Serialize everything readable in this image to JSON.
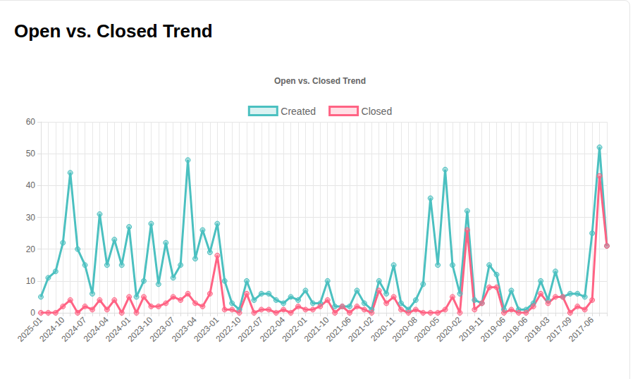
{
  "heading": "Open vs. Closed Trend",
  "chart_data": {
    "type": "line",
    "title": "Open vs. Closed Trend",
    "categories": [
      "2025-01",
      null,
      null,
      "2024-10",
      null,
      null,
      "2024-07",
      null,
      null,
      "2024-04",
      null,
      null,
      "2024-01",
      null,
      null,
      "2023-10",
      null,
      null,
      "2023-07",
      null,
      null,
      "2023-04",
      null,
      null,
      "2023-01",
      null,
      null,
      "2022-10",
      null,
      null,
      "2022-07",
      null,
      null,
      "2022-04",
      null,
      null,
      "2022-01",
      null,
      null,
      "2021-10",
      null,
      null,
      "2021-06",
      null,
      null,
      "2021-02",
      null,
      null,
      "2020-11",
      null,
      null,
      "2020-08",
      null,
      null,
      "2020-05",
      null,
      null,
      "2020-02",
      null,
      null,
      "2019-11",
      null,
      null,
      "2019-06",
      null,
      null,
      "2018-06",
      null,
      null,
      "2018-03",
      null,
      null,
      "2017-09",
      null,
      null,
      "2017-06",
      null,
      null
    ],
    "series": [
      {
        "name": "Created",
        "color": "#4bc0c0",
        "values": [
          5,
          11,
          13,
          22,
          44,
          20,
          15,
          6,
          31,
          15,
          23,
          15,
          27,
          5,
          10,
          28,
          9,
          22,
          11,
          15,
          48,
          17,
          26,
          19,
          28,
          10,
          3,
          1,
          10,
          4,
          6,
          6,
          4,
          3,
          5,
          4,
          7,
          3,
          3,
          10,
          2,
          2,
          2,
          7,
          3,
          1,
          10,
          6,
          15,
          3,
          1,
          4,
          9,
          36,
          15,
          45,
          15,
          6,
          32,
          4,
          3,
          15,
          12,
          1,
          7,
          1,
          1,
          3,
          10,
          4,
          13,
          5,
          6,
          6,
          5,
          25,
          52,
          21
        ]
      },
      {
        "name": "Closed",
        "color": "#ff6384",
        "values": [
          0,
          0,
          0,
          2,
          4,
          0,
          2,
          1,
          4,
          1,
          4,
          0,
          5,
          0,
          5,
          2,
          2,
          3,
          5,
          4,
          6,
          3,
          2,
          6,
          18,
          1,
          1,
          0,
          6,
          0,
          1,
          1,
          0,
          1,
          0,
          2,
          1,
          1,
          2,
          4,
          0,
          2,
          0,
          2,
          1,
          0,
          7,
          3,
          5,
          1,
          0,
          1,
          0,
          0,
          0,
          1,
          5,
          0,
          26,
          1,
          3,
          8,
          8,
          0,
          1,
          0,
          0,
          2,
          6,
          3,
          5,
          5,
          0,
          2,
          1,
          4,
          43,
          21
        ]
      }
    ],
    "ylim": [
      0,
      60
    ],
    "yticks": [
      0,
      10,
      20,
      30,
      40,
      50,
      60
    ],
    "grid": true,
    "legend": "top",
    "marker": "circle",
    "line_style": "solid"
  }
}
